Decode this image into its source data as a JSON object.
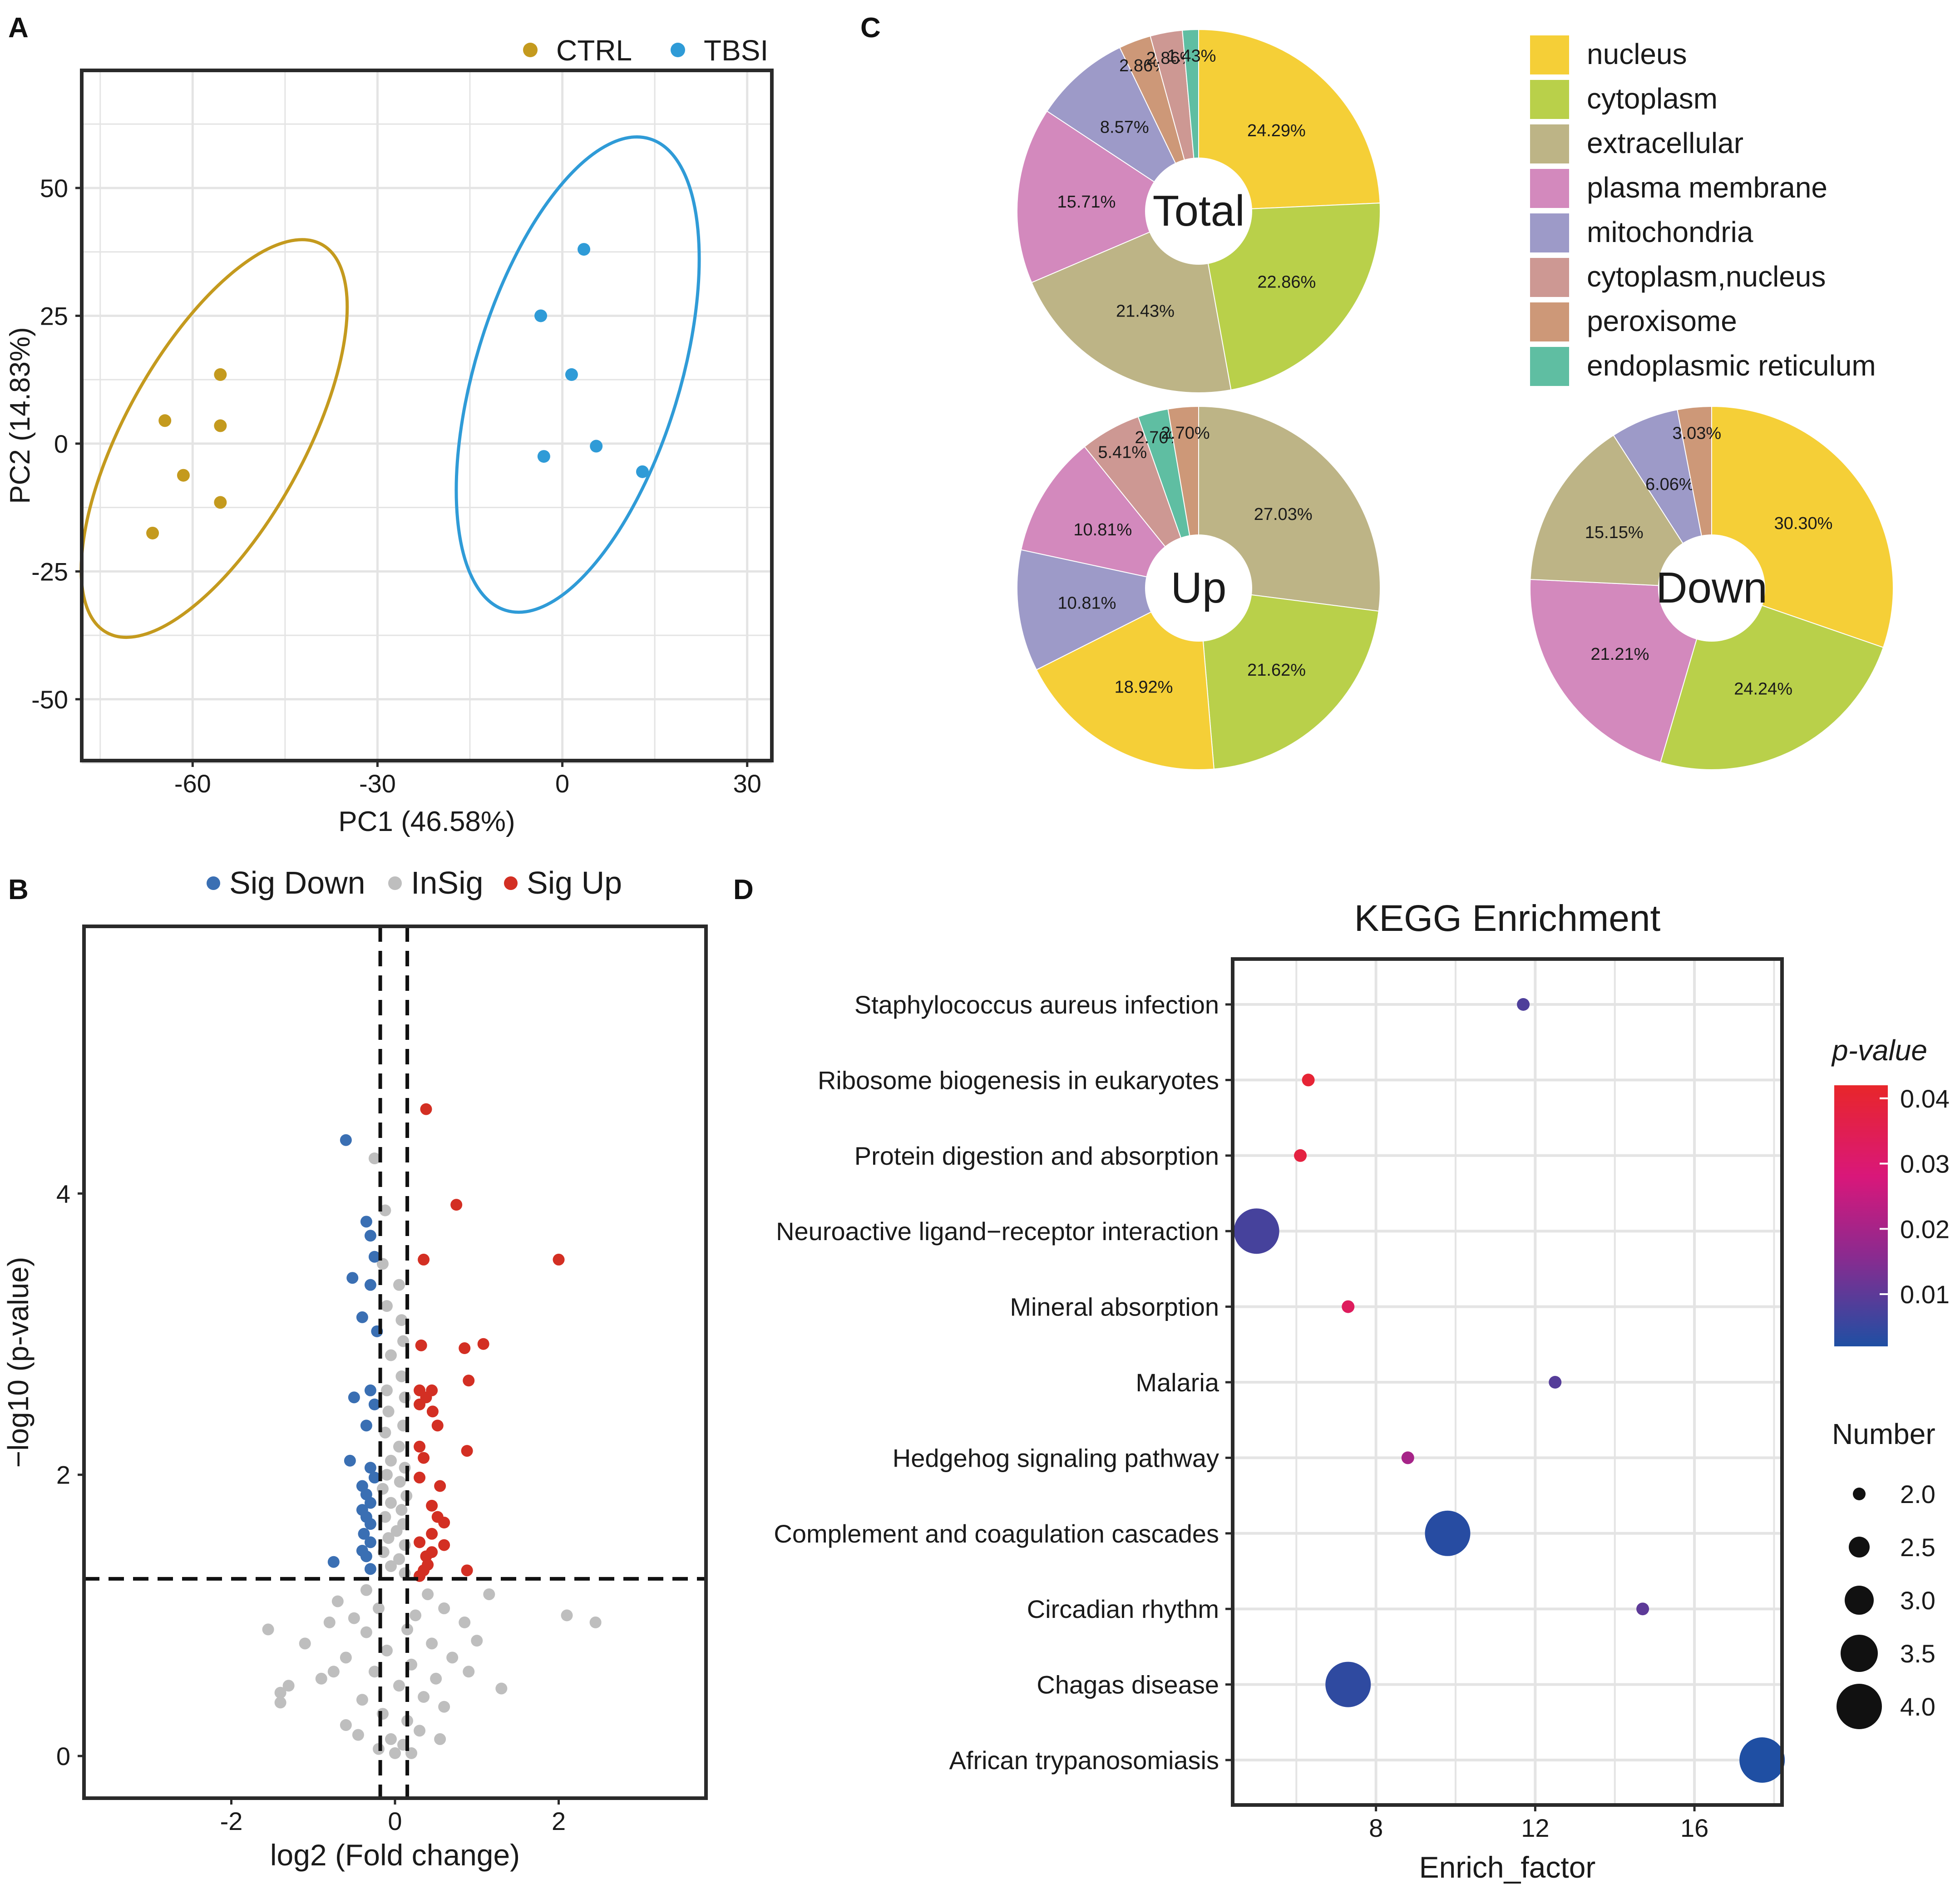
{
  "colors": {
    "ctrl": "#c49a1e",
    "tbsi": "#2f9bd7",
    "sig_down": "#3a6fb3",
    "insig": "#bebebe",
    "sig_up": "#d32f23",
    "grid": "#e4e4e4",
    "frame": "#2a2a2a"
  },
  "chart_data": [
    {
      "panel": "A",
      "type": "scatter",
      "title": "",
      "xlabel": "PC1 (46.58%)",
      "ylabel": "PC2 (14.83%)",
      "xlim": [
        -78,
        34
      ],
      "ylim": [
        -62,
        73
      ],
      "xticks": [
        -60,
        -30,
        0,
        30
      ],
      "yticks": [
        -50,
        -25,
        0,
        25,
        50
      ],
      "legend": {
        "position": "top-right",
        "labels": [
          "CTRL",
          "TBSI"
        ]
      },
      "series": [
        {
          "name": "CTRL",
          "color_key": "ctrl",
          "points": [
            [
              -55.5,
              13.5
            ],
            [
              -64.5,
              4.5
            ],
            [
              -55.5,
              3.5
            ],
            [
              -61.5,
              -6.2
            ],
            [
              -55.5,
              -11.5
            ],
            [
              -66.5,
              -17.5
            ]
          ],
          "ellipse": {
            "cx": -56.5,
            "cy": 1,
            "rx": 36,
            "ry": 17.5,
            "angle": 61
          }
        },
        {
          "name": "TBSI",
          "color_key": "tbsi",
          "points": [
            [
              3.5,
              38
            ],
            [
              -3.5,
              25
            ],
            [
              1.5,
              13.5
            ],
            [
              5.5,
              -0.5
            ],
            [
              -3,
              -2.5
            ],
            [
              13,
              -5.5
            ]
          ],
          "ellipse": {
            "cx": 2.5,
            "cy": 13.5,
            "rx": 40,
            "ry": 20,
            "angle": 73
          }
        }
      ]
    },
    {
      "panel": "B",
      "type": "scatter",
      "title": "",
      "xlabel": "log2 (Fold change)",
      "ylabel": "−log10 (p-value)",
      "xlim": [
        -3.8,
        3.8
      ],
      "ylim": [
        -0.3,
        5.9
      ],
      "xticks": [
        -2,
        0,
        2
      ],
      "yticks": [
        0,
        2,
        4
      ],
      "thresholds": {
        "x": [
          -0.18,
          0.15
        ],
        "y": 1.26
      },
      "legend": {
        "position": "top",
        "labels": [
          "Sig Down",
          "InSig",
          "Sig Up"
        ]
      },
      "series": [
        {
          "name": "Sig Down",
          "color_key": "sig_down",
          "points": [
            [
              -0.6,
              4.38
            ],
            [
              -0.35,
              3.8
            ],
            [
              -0.3,
              3.7
            ],
            [
              -0.25,
              3.55
            ],
            [
              -0.52,
              3.4
            ],
            [
              -0.3,
              3.35
            ],
            [
              -0.4,
              3.12
            ],
            [
              -0.22,
              3.02
            ],
            [
              -0.3,
              2.6
            ],
            [
              -0.5,
              2.55
            ],
            [
              -0.25,
              2.5
            ],
            [
              -0.35,
              2.35
            ],
            [
              -0.55,
              2.1
            ],
            [
              -0.3,
              2.05
            ],
            [
              -0.25,
              1.98
            ],
            [
              -0.4,
              1.92
            ],
            [
              -0.35,
              1.86
            ],
            [
              -0.3,
              1.8
            ],
            [
              -0.4,
              1.75
            ],
            [
              -0.35,
              1.7
            ],
            [
              -0.3,
              1.65
            ],
            [
              -0.38,
              1.58
            ],
            [
              -0.3,
              1.52
            ],
            [
              -0.4,
              1.46
            ],
            [
              -0.35,
              1.42
            ],
            [
              -0.75,
              1.38
            ],
            [
              -0.3,
              1.33
            ]
          ]
        },
        {
          "name": "Sig Up",
          "color_key": "sig_up",
          "points": [
            [
              0.38,
              4.6
            ],
            [
              0.75,
              3.92
            ],
            [
              2.0,
              3.53
            ],
            [
              0.35,
              3.53
            ],
            [
              1.08,
              2.93
            ],
            [
              0.85,
              2.9
            ],
            [
              0.32,
              2.92
            ],
            [
              0.9,
              2.67
            ],
            [
              0.45,
              2.6
            ],
            [
              0.3,
              2.6
            ],
            [
              0.38,
              2.55
            ],
            [
              0.3,
              2.5
            ],
            [
              0.46,
              2.45
            ],
            [
              0.52,
              2.35
            ],
            [
              0.3,
              2.2
            ],
            [
              0.88,
              2.17
            ],
            [
              0.35,
              2.12
            ],
            [
              0.3,
              1.98
            ],
            [
              0.55,
              1.92
            ],
            [
              0.45,
              1.78
            ],
            [
              0.52,
              1.7
            ],
            [
              0.6,
              1.66
            ],
            [
              0.45,
              1.58
            ],
            [
              0.3,
              1.52
            ],
            [
              0.6,
              1.5
            ],
            [
              0.45,
              1.45
            ],
            [
              0.38,
              1.42
            ],
            [
              0.4,
              1.36
            ],
            [
              0.35,
              1.32
            ],
            [
              0.3,
              1.28
            ],
            [
              0.88,
              1.32
            ]
          ]
        },
        {
          "name": "InSig",
          "color_key": "insig",
          "points": [
            [
              -0.25,
              4.25
            ],
            [
              -0.12,
              3.88
            ],
            [
              -0.15,
              3.5
            ],
            [
              0.05,
              3.35
            ],
            [
              -0.1,
              3.2
            ],
            [
              0.08,
              3.1
            ],
            [
              0.1,
              2.95
            ],
            [
              -0.05,
              2.85
            ],
            [
              0.08,
              2.7
            ],
            [
              -0.1,
              2.6
            ],
            [
              0.12,
              2.55
            ],
            [
              -0.08,
              2.45
            ],
            [
              0.1,
              2.35
            ],
            [
              -0.12,
              2.3
            ],
            [
              0.05,
              2.2
            ],
            [
              -0.05,
              2.1
            ],
            [
              0.12,
              2.05
            ],
            [
              -0.1,
              2.0
            ],
            [
              0.06,
              1.95
            ],
            [
              -0.15,
              1.9
            ],
            [
              0.14,
              1.85
            ],
            [
              -0.05,
              1.8
            ],
            [
              0.08,
              1.75
            ],
            [
              -0.12,
              1.7
            ],
            [
              0.1,
              1.65
            ],
            [
              0.02,
              1.6
            ],
            [
              -0.08,
              1.55
            ],
            [
              0.12,
              1.5
            ],
            [
              -0.14,
              1.45
            ],
            [
              0.05,
              1.4
            ],
            [
              -0.05,
              1.35
            ],
            [
              0.12,
              1.3
            ],
            [
              -0.35,
              1.18
            ],
            [
              0.4,
              1.15
            ],
            [
              1.15,
              1.15
            ],
            [
              -0.7,
              1.1
            ],
            [
              0.6,
              1.05
            ],
            [
              -0.2,
              1.05
            ],
            [
              0.25,
              1.0
            ],
            [
              -0.5,
              0.98
            ],
            [
              0.85,
              0.95
            ],
            [
              -0.8,
              0.95
            ],
            [
              2.1,
              1.0
            ],
            [
              2.45,
              0.95
            ],
            [
              -1.55,
              0.9
            ],
            [
              0.15,
              0.9
            ],
            [
              -0.35,
              0.88
            ],
            [
              1.0,
              0.82
            ],
            [
              -1.1,
              0.8
            ],
            [
              0.45,
              0.8
            ],
            [
              -0.1,
              0.75
            ],
            [
              0.7,
              0.7
            ],
            [
              -0.6,
              0.7
            ],
            [
              0.2,
              0.65
            ],
            [
              -0.25,
              0.6
            ],
            [
              0.5,
              0.55
            ],
            [
              -0.9,
              0.55
            ],
            [
              -1.3,
              0.5
            ],
            [
              1.3,
              0.48
            ],
            [
              0.05,
              0.5
            ],
            [
              -1.4,
              0.45
            ],
            [
              0.35,
              0.42
            ],
            [
              -0.4,
              0.4
            ],
            [
              0.6,
              0.35
            ],
            [
              -0.15,
              0.3
            ],
            [
              0.15,
              0.25
            ],
            [
              -0.6,
              0.22
            ],
            [
              0.3,
              0.18
            ],
            [
              -0.05,
              0.12
            ],
            [
              0.1,
              0.08
            ],
            [
              0.0,
              0.02
            ],
            [
              -1.4,
              0.38
            ],
            [
              -0.75,
              0.6
            ],
            [
              0.9,
              0.6
            ],
            [
              -0.45,
              0.15
            ],
            [
              0.55,
              0.12
            ],
            [
              -0.2,
              0.05
            ],
            [
              0.2,
              0.02
            ]
          ]
        }
      ]
    },
    {
      "panel": "C",
      "type": "pie",
      "title": "",
      "legend": {
        "position": "top-right"
      },
      "categories": [
        "nucleus",
        "cytoplasm",
        "extracellular",
        "plasma membrane",
        "mitochondria",
        "cytoplasm,nucleus",
        "peroxisome",
        "endoplasmic reticulum"
      ],
      "category_colors": [
        "#f5cf37",
        "#b9d04a",
        "#bdb486",
        "#d389bd",
        "#9d9ac8",
        "#cd9893",
        "#cd9878",
        "#5fbea2"
      ],
      "pies": [
        {
          "name": "Total",
          "slices": [
            {
              "category": "nucleus",
              "value": 24.29,
              "label": "24.29%"
            },
            {
              "category": "cytoplasm",
              "value": 22.86,
              "label": "22.86%"
            },
            {
              "category": "extracellular",
              "value": 21.43,
              "label": "21.43%"
            },
            {
              "category": "plasma membrane",
              "value": 15.71,
              "label": "15.71%"
            },
            {
              "category": "mitochondria",
              "value": 8.57,
              "label": "8.57%"
            },
            {
              "category": "peroxisome",
              "value": 2.86,
              "label": "2.86%"
            },
            {
              "category": "cytoplasm,nucleus",
              "value": 2.86,
              "label": "2.86%"
            },
            {
              "category": "endoplasmic reticulum",
              "value": 1.43,
              "label": "1.43%"
            }
          ]
        },
        {
          "name": "Up",
          "slices": [
            {
              "category": "extracellular",
              "value": 27.03,
              "label": "27.03%"
            },
            {
              "category": "cytoplasm",
              "value": 21.62,
              "label": "21.62%"
            },
            {
              "category": "nucleus",
              "value": 18.92,
              "label": "18.92%"
            },
            {
              "category": "mitochondria",
              "value": 10.81,
              "label": "10.81%"
            },
            {
              "category": "plasma membrane",
              "value": 10.81,
              "label": "10.81%"
            },
            {
              "category": "cytoplasm,nucleus",
              "value": 5.41,
              "label": "5.41%"
            },
            {
              "category": "endoplasmic reticulum",
              "value": 2.7,
              "label": "2.70%"
            },
            {
              "category": "peroxisome",
              "value": 2.7,
              "label": "2.70%"
            }
          ]
        },
        {
          "name": "Down",
          "slices": [
            {
              "category": "nucleus",
              "value": 30.3,
              "label": "30.30%"
            },
            {
              "category": "cytoplasm",
              "value": 24.24,
              "label": "24.24%"
            },
            {
              "category": "plasma membrane",
              "value": 21.21,
              "label": "21.21%"
            },
            {
              "category": "extracellular",
              "value": 15.15,
              "label": "15.15%"
            },
            {
              "category": "mitochondria",
              "value": 6.06,
              "label": "6.06%"
            },
            {
              "category": "peroxisome",
              "value": 3.03,
              "label": "3.03%"
            }
          ]
        }
      ]
    },
    {
      "panel": "D",
      "type": "scatter",
      "title": "KEGG Enrichment",
      "xlabel": "Enrich_factor",
      "ylabel": "",
      "xlim": [
        4.4,
        18.2
      ],
      "xticks": [
        8,
        12,
        16
      ],
      "color_scale": {
        "title": "p-value",
        "ticks": [
          0.04,
          0.03,
          0.02,
          0.01
        ],
        "range": [
          0.002,
          0.042
        ]
      },
      "size_legend": {
        "title": "Number",
        "ticks": [
          2.0,
          2.5,
          3.0,
          3.5,
          4.0
        ]
      },
      "points": [
        {
          "pathway": "Staphylococcus aureus infection",
          "enrich_factor": 11.7,
          "number": 2,
          "pvalue": 0.008
        },
        {
          "pathway": "Ribosome biogenesis in eukaryotes",
          "enrich_factor": 6.3,
          "number": 2,
          "pvalue": 0.04
        },
        {
          "pathway": "Protein digestion and absorption",
          "enrich_factor": 6.1,
          "number": 2,
          "pvalue": 0.038
        },
        {
          "pathway": "Neuroactive ligand−receptor interaction",
          "enrich_factor": 5.0,
          "number": 4,
          "pvalue": 0.007
        },
        {
          "pathway": "Mineral absorption",
          "enrich_factor": 7.3,
          "number": 2,
          "pvalue": 0.033
        },
        {
          "pathway": "Malaria",
          "enrich_factor": 12.5,
          "number": 2,
          "pvalue": 0.009
        },
        {
          "pathway": "Hedgehog signaling pathway",
          "enrich_factor": 8.8,
          "number": 2,
          "pvalue": 0.02
        },
        {
          "pathway": "Complement and coagulation cascades",
          "enrich_factor": 9.8,
          "number": 4,
          "pvalue": 0.003
        },
        {
          "pathway": "Circadian rhythm",
          "enrich_factor": 14.7,
          "number": 2,
          "pvalue": 0.01
        },
        {
          "pathway": "Chagas disease",
          "enrich_factor": 7.3,
          "number": 4,
          "pvalue": 0.004
        },
        {
          "pathway": "African trypanosomiasis",
          "enrich_factor": 17.7,
          "number": 4,
          "pvalue": 0.002
        }
      ]
    }
  ]
}
